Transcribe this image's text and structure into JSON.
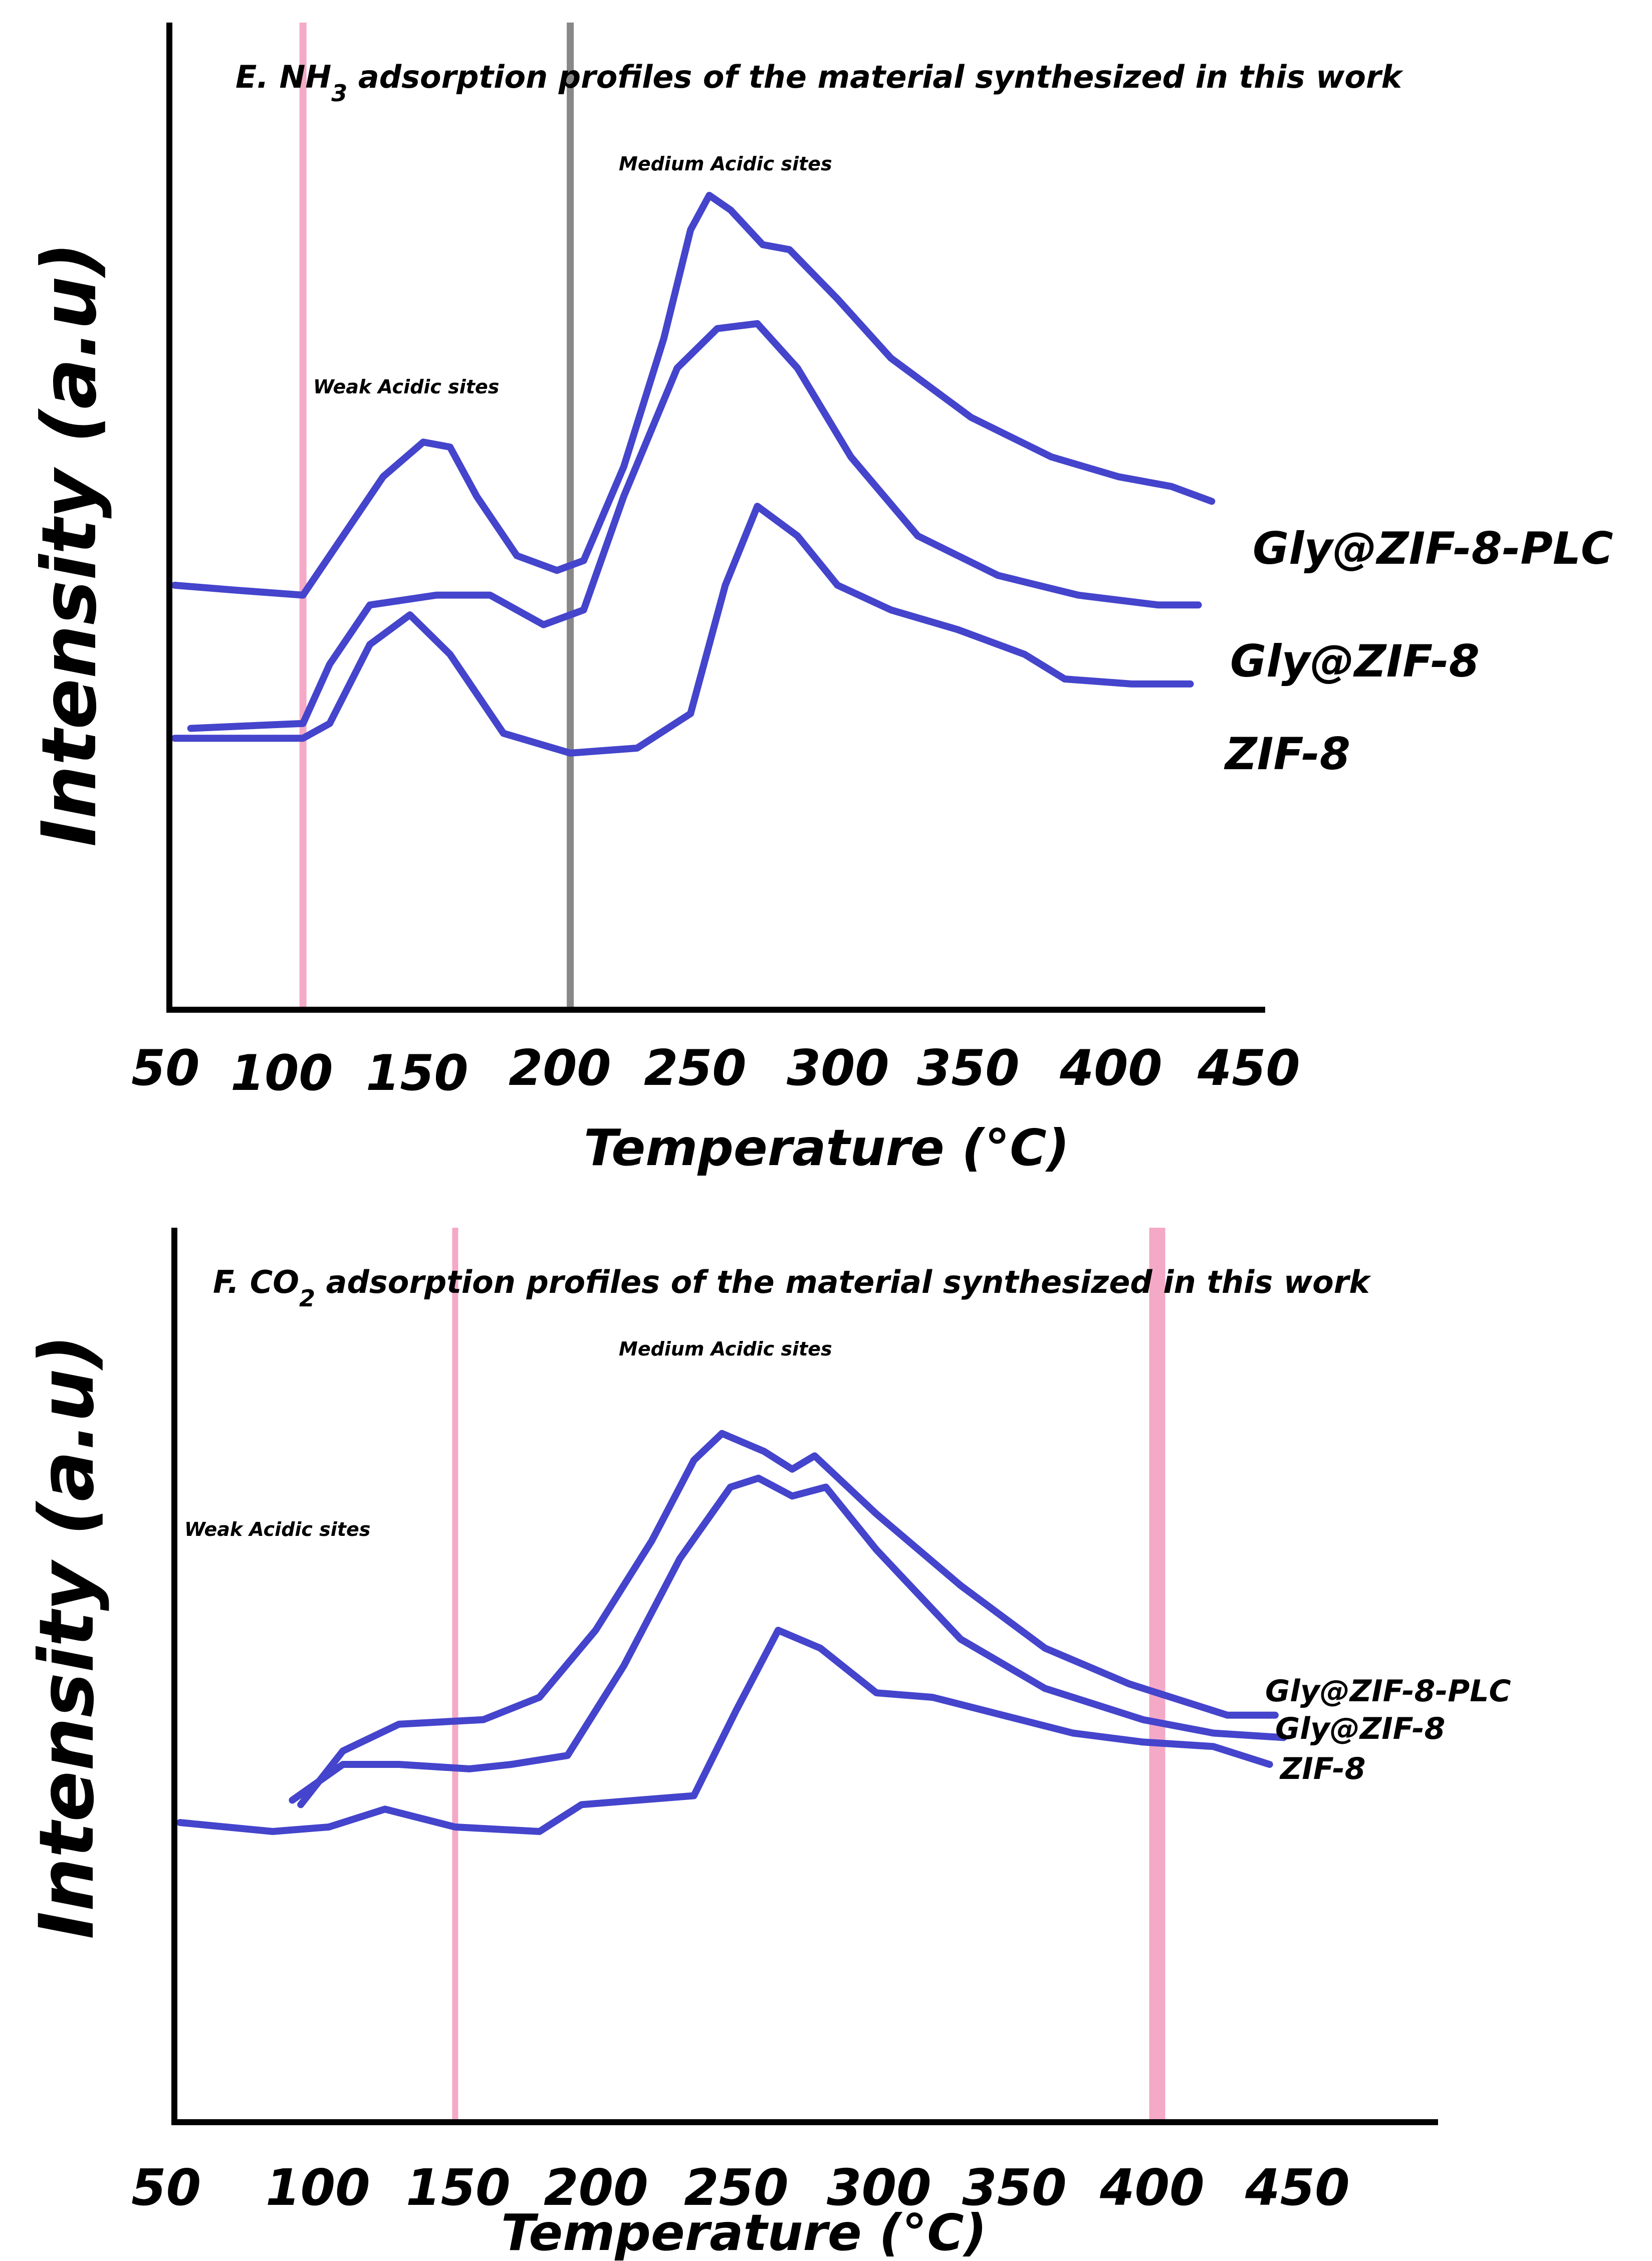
{
  "chart_data": [
    {
      "type": "line",
      "panel": "E",
      "title": "E. NH3 adsorption profiles of the material synthesized in this work",
      "title_parts": {
        "prefix": "E. NH",
        "sub": "3",
        "suffix": " adsorption profiles of the material synthesized in this work"
      },
      "xlabel": "Temperature (°C)",
      "ylabel": "Intensity (a.u)",
      "xlim": [
        50,
        460
      ],
      "ylim": [
        0,
        10
      ],
      "xticks": [
        "50",
        "100",
        "150",
        "200",
        "250",
        "300",
        "350",
        "400",
        "450"
      ],
      "regions": [
        {
          "label": "Weak Acidic sites",
          "x": 140
        },
        {
          "label": "Medium Acidic sites",
          "x": 280
        }
      ],
      "vlines": [
        {
          "x": 100,
          "color": "#f4a9c6"
        },
        {
          "x": 200,
          "color": "#888888"
        }
      ],
      "curve_color": "#4444cc",
      "series": [
        {
          "name": "Gly@ZIF-8-PLC",
          "points": [
            [
              52,
              4.3
            ],
            [
              75,
              4.25
            ],
            [
              100,
              4.2
            ],
            [
              115,
              4.8
            ],
            [
              130,
              5.4
            ],
            [
              145,
              5.75
            ],
            [
              155,
              5.7
            ],
            [
              165,
              5.2
            ],
            [
              180,
              4.6
            ],
            [
              195,
              4.45
            ],
            [
              205,
              4.55
            ],
            [
              220,
              5.5
            ],
            [
              235,
              6.8
            ],
            [
              245,
              7.9
            ],
            [
              252,
              8.25
            ],
            [
              260,
              8.1
            ],
            [
              272,
              7.75
            ],
            [
              282,
              7.7
            ],
            [
              300,
              7.2
            ],
            [
              320,
              6.6
            ],
            [
              350,
              6.0
            ],
            [
              380,
              5.6
            ],
            [
              405,
              5.4
            ],
            [
              425,
              5.3
            ],
            [
              440,
              5.15
            ]
          ]
        },
        {
          "name": "Gly@ZIF-8",
          "points": [
            [
              58,
              2.85
            ],
            [
              100,
              2.9
            ],
            [
              110,
              3.5
            ],
            [
              125,
              4.1
            ],
            [
              150,
              4.2
            ],
            [
              170,
              4.2
            ],
            [
              190,
              3.9
            ],
            [
              205,
              4.05
            ],
            [
              220,
              5.2
            ],
            [
              240,
              6.5
            ],
            [
              255,
              6.9
            ],
            [
              270,
              6.95
            ],
            [
              285,
              6.5
            ],
            [
              305,
              5.6
            ],
            [
              330,
              4.8
            ],
            [
              360,
              4.4
            ],
            [
              390,
              4.2
            ],
            [
              420,
              4.1
            ],
            [
              435,
              4.1
            ]
          ]
        },
        {
          "name": "ZIF-8",
          "points": [
            [
              52,
              2.75
            ],
            [
              100,
              2.75
            ],
            [
              110,
              2.9
            ],
            [
              125,
              3.7
            ],
            [
              140,
              4.0
            ],
            [
              155,
              3.6
            ],
            [
              175,
              2.8
            ],
            [
              200,
              2.6
            ],
            [
              225,
              2.65
            ],
            [
              245,
              3.0
            ],
            [
              258,
              4.3
            ],
            [
              270,
              5.1
            ],
            [
              285,
              4.8
            ],
            [
              300,
              4.3
            ],
            [
              320,
              4.05
            ],
            [
              345,
              3.85
            ],
            [
              370,
              3.6
            ],
            [
              385,
              3.35
            ],
            [
              410,
              3.3
            ],
            [
              432,
              3.3
            ]
          ]
        }
      ]
    },
    {
      "type": "line",
      "panel": "F",
      "title": "F. CO2 adsorption profiles of the material synthesized in this work",
      "title_parts": {
        "prefix": "F. CO",
        "sub": "2",
        "suffix": " adsorption profiles of the material synthesized in this work"
      },
      "xlabel": "Temperature (°C)",
      "ylabel": "Intensity (a.u)",
      "xlim": [
        50,
        500
      ],
      "ylim": [
        0,
        10
      ],
      "xticks": [
        "50",
        "100",
        "150",
        "200",
        "250",
        "300",
        "350",
        "400",
        "450"
      ],
      "regions": [
        {
          "label": "Weak Acidic sites",
          "x": 80
        },
        {
          "label": "Medium Acidic sites",
          "x": 265
        }
      ],
      "vlines": [
        {
          "x": 150,
          "color": "#f4a9c6"
        },
        {
          "x": 400,
          "color": "#f4a9c6"
        }
      ],
      "curve_color": "#4444cc",
      "series": [
        {
          "name": "Gly@ZIF-8-PLC",
          "points": [
            [
              95,
              3.55
            ],
            [
              110,
              4.15
            ],
            [
              130,
              4.45
            ],
            [
              160,
              4.5
            ],
            [
              180,
              4.75
            ],
            [
              200,
              5.5
            ],
            [
              220,
              6.5
            ],
            [
              235,
              7.4
            ],
            [
              245,
              7.7
            ],
            [
              260,
              7.5
            ],
            [
              270,
              7.3
            ],
            [
              278,
              7.45
            ],
            [
              300,
              6.8
            ],
            [
              330,
              6.0
            ],
            [
              360,
              5.3
            ],
            [
              390,
              4.9
            ],
            [
              410,
              4.7
            ],
            [
              425,
              4.55
            ],
            [
              442,
              4.55
            ]
          ]
        },
        {
          "name": "Gly@ZIF-8",
          "points": [
            [
              92,
              3.6
            ],
            [
              110,
              4.0
            ],
            [
              130,
              4.0
            ],
            [
              155,
              3.95
            ],
            [
              170,
              4.0
            ],
            [
              190,
              4.1
            ],
            [
              210,
              5.1
            ],
            [
              230,
              6.3
            ],
            [
              248,
              7.1
            ],
            [
              258,
              7.2
            ],
            [
              270,
              7.0
            ],
            [
              282,
              7.1
            ],
            [
              300,
              6.4
            ],
            [
              330,
              5.4
            ],
            [
              360,
              4.85
            ],
            [
              395,
              4.5
            ],
            [
              420,
              4.35
            ],
            [
              445,
              4.3
            ]
          ]
        },
        {
          "name": "ZIF-8",
          "points": [
            [
              52,
              3.35
            ],
            [
              85,
              3.25
            ],
            [
              105,
              3.3
            ],
            [
              125,
              3.5
            ],
            [
              150,
              3.3
            ],
            [
              180,
              3.25
            ],
            [
              195,
              3.55
            ],
            [
              215,
              3.6
            ],
            [
              235,
              3.65
            ],
            [
              250,
              4.6
            ],
            [
              265,
              5.5
            ],
            [
              280,
              5.3
            ],
            [
              300,
              4.8
            ],
            [
              320,
              4.75
            ],
            [
              345,
              4.55
            ],
            [
              370,
              4.35
            ],
            [
              395,
              4.25
            ],
            [
              420,
              4.2
            ],
            [
              440,
              4.0
            ]
          ]
        }
      ]
    }
  ]
}
